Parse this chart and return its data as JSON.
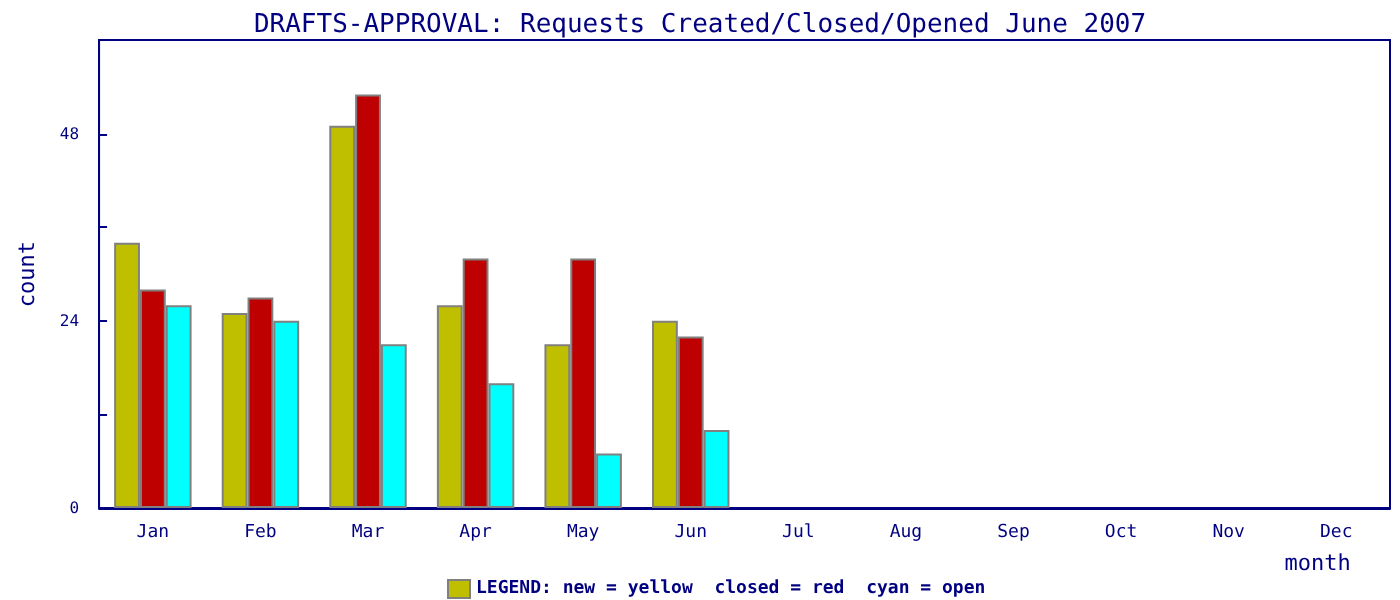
{
  "chart_data": {
    "type": "bar",
    "title": "DRAFTS-APPROVAL: Requests Created/Closed/Opened June 2007",
    "xlabel": "month",
    "ylabel": "count",
    "categories": [
      "Jan",
      "Feb",
      "Mar",
      "Apr",
      "May",
      "Jun",
      "Jul",
      "Aug",
      "Sep",
      "Oct",
      "Nov",
      "Dec"
    ],
    "series": [
      {
        "color": "#bfbf00",
        "values": [
          34,
          25,
          49,
          26,
          21,
          24,
          null,
          null,
          null,
          null,
          null,
          null
        ]
      },
      {
        "color": "#bf0000",
        "values": [
          28,
          27,
          53,
          32,
          32,
          22,
          null,
          null,
          null,
          null,
          null,
          null
        ]
      },
      {
        "color": "#00ffff",
        "values": [
          26,
          24,
          21,
          16,
          7,
          10,
          null,
          null,
          null,
          null,
          null,
          null
        ]
      }
    ],
    "ylim": [
      0,
      60
    ],
    "yticks": [
      0,
      {
        "value": 12,
        "label": null
      },
      24,
      {
        "value": 36,
        "label": null
      },
      48
    ],
    "grid": false,
    "annotations": [
      "LEGEND: new = yellow  closed = red  cyan = open"
    ]
  }
}
